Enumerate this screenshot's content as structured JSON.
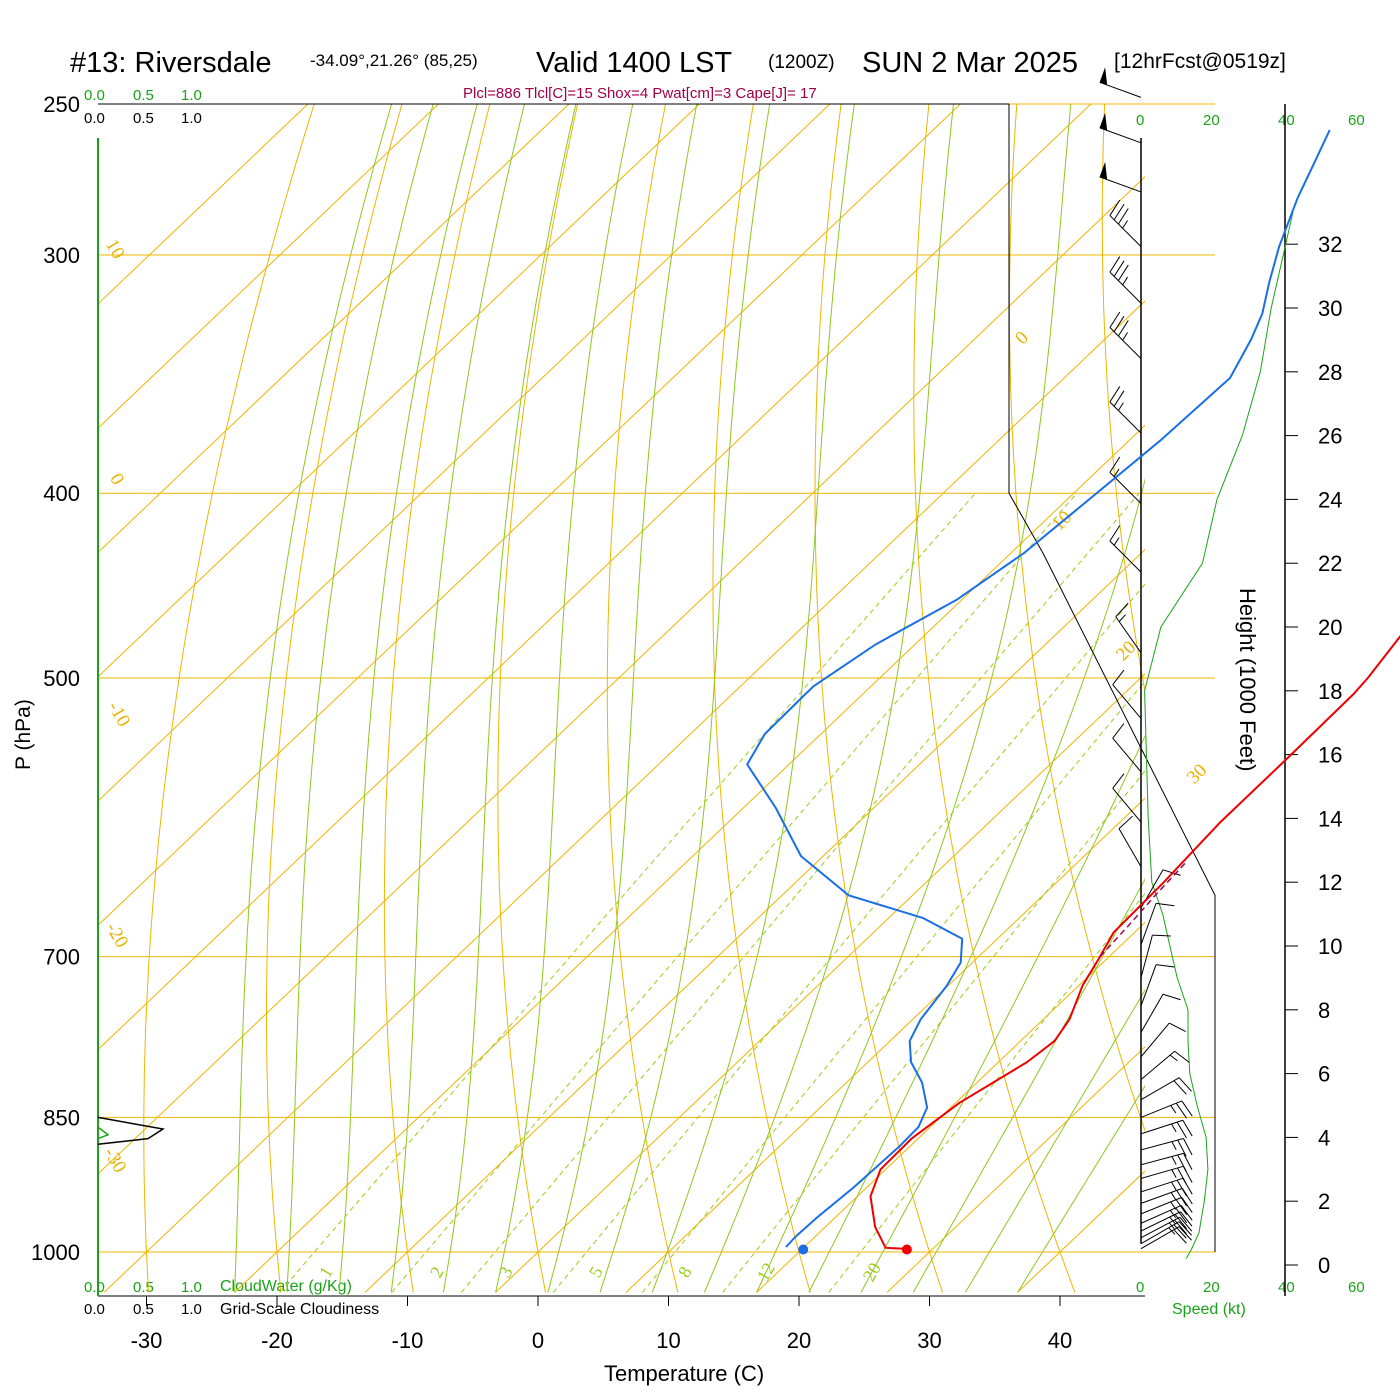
{
  "title": {
    "station": "#13: Riversdale",
    "coords": "-34.09°,21.26° (85,25)",
    "valid": "Valid 1400 LST",
    "zulu": "(1200Z)",
    "date": "SUN 2 Mar 2025",
    "forecast": "[12hrFcst@0519z]"
  },
  "indices": "Plcl=886 Tlcl[C]=15 Shox=4 Pwat[cm]=3 Cape[J]= 17",
  "colors": {
    "temperature": "#ee0000",
    "dewpoint": "#1a6ee6",
    "isotherm": "#f0b400",
    "dry_adiabat": "#f0b400",
    "moist_adiabat": "#8cc81e",
    "mixing_ratio": "#9ccc1a",
    "accent_green": "#19a319",
    "indices": "#a0004a"
  },
  "cloud": {
    "top_green_ticks": [
      "0.0",
      "0.5",
      "1.0"
    ],
    "top_black_ticks": [
      "0.0",
      "0.5",
      "1.0"
    ],
    "bottom_green_ticks": [
      "0.0",
      "0.5",
      "1.0"
    ],
    "bottom_black_ticks": [
      "0.0",
      "0.5",
      "1.0"
    ],
    "cloudwater_label": "CloudWater (g/Kg)",
    "cloudiness_label": "Grid-Scale Cloudiness",
    "cloudiness_profile": [
      [
        0.0,
        850
      ],
      [
        0.52,
        862
      ],
      [
        0.4,
        872
      ],
      [
        0.0,
        878
      ]
    ]
  },
  "speed_axis": {
    "ticks": [
      "0",
      "20",
      "40",
      "60"
    ],
    "label": "Speed (kt)"
  },
  "chart_data": {
    "type": "line",
    "diagram": "skew-T log-p",
    "xlabel": "Temperature (C)",
    "ylabel": "P (hPa)",
    "y2label": "Height (1000 Feet)",
    "x_ticks": [
      -30,
      -20,
      -10,
      0,
      10,
      20,
      30,
      40
    ],
    "x_tick_labels": [
      "-30",
      "-20",
      "-10",
      "0",
      "10",
      "20",
      "30",
      "40"
    ],
    "p_levels": [
      250,
      300,
      400,
      500,
      700,
      850,
      1000
    ],
    "p_level_labels": [
      "250",
      "300",
      "400",
      "500",
      "700",
      "850",
      "1000"
    ],
    "height_ticks": [
      0,
      2,
      4,
      6,
      8,
      10,
      12,
      14,
      16,
      18,
      20,
      22,
      24,
      26,
      28,
      30,
      32
    ],
    "height_tick_labels": [
      "0",
      "2",
      "4",
      "6",
      "8",
      "10",
      "12",
      "14",
      "16",
      "18",
      "20",
      "22",
      "24",
      "26",
      "28",
      "30",
      "32"
    ],
    "plim_hpa": [
      250,
      1050
    ],
    "isotherm_labels": [
      "10",
      "0",
      "-10",
      "-20",
      "-30",
      "0",
      "10",
      "20",
      "30"
    ],
    "mixing_ratio_labels": [
      "1",
      "2",
      "3",
      "5",
      "8",
      "12",
      "20"
    ],
    "mixing_ratio_values": [
      1,
      2,
      3,
      5,
      8,
      12,
      20
    ],
    "series": [
      {
        "name": "",
        "role": "temperature",
        "points": [
          [
            27.8,
            996
          ],
          [
            26.3,
            995
          ],
          [
            23.8,
            970
          ],
          [
            21.0,
            935
          ],
          [
            19.6,
            905
          ],
          [
            19.5,
            872
          ],
          [
            20.3,
            835
          ],
          [
            22.2,
            795
          ],
          [
            22.6,
            775
          ],
          [
            22.0,
            755
          ],
          [
            20.3,
            725
          ],
          [
            19.3,
            700
          ],
          [
            18.4,
            680
          ],
          [
            18.2,
            640
          ],
          [
            17.7,
            595
          ],
          [
            17.7,
            550
          ],
          [
            17.6,
            510
          ],
          [
            17.4,
            500
          ],
          [
            16.7,
            480
          ],
          [
            15.2,
            440
          ],
          [
            13.4,
            410
          ],
          [
            10.4,
            380
          ],
          [
            7.6,
            354
          ],
          [
            4.8,
            330
          ],
          [
            2.8,
            315
          ],
          [
            0.6,
            300
          ],
          [
            -1.6,
            288
          ],
          [
            -3.6,
            275
          ],
          [
            -5.6,
            262
          ]
        ]
      },
      {
        "name": "",
        "role": "dewpoint",
        "points": [
          [
            18.6,
            994
          ],
          [
            18.5,
            982
          ],
          [
            18.6,
            960
          ],
          [
            19.0,
            925
          ],
          [
            19.2,
            880
          ],
          [
            19.1,
            860
          ],
          [
            18.2,
            840
          ],
          [
            15.8,
            815
          ],
          [
            13.3,
            795
          ],
          [
            11.5,
            775
          ],
          [
            10.6,
            755
          ],
          [
            9.9,
            725
          ],
          [
            9.1,
            705
          ],
          [
            7.3,
            685
          ],
          [
            2.6,
            668
          ],
          [
            -4.9,
            650
          ],
          [
            -11.7,
            620
          ],
          [
            -17.5,
            585
          ],
          [
            -23.2,
            555
          ],
          [
            -24.3,
            535
          ],
          [
            -24.4,
            510
          ],
          [
            -24.4,
            505
          ],
          [
            -23.0,
            480
          ],
          [
            -20.4,
            455
          ],
          [
            -19.0,
            430
          ],
          [
            -18.5,
            410
          ],
          [
            -17.6,
            375
          ],
          [
            -17.3,
            348
          ],
          [
            -18.8,
            332
          ],
          [
            -20.0,
            322
          ],
          [
            -22.0,
            310
          ],
          [
            -24.1,
            297
          ],
          [
            -26.6,
            280
          ],
          [
            -28.2,
            268
          ],
          [
            -29.6,
            258
          ]
        ]
      },
      {
        "name": "",
        "role": "parcel",
        "points": [
          [
            19.3,
            700
          ],
          [
            19.0,
            675
          ],
          [
            18.6,
            650
          ],
          [
            18.3,
            625
          ]
        ]
      }
    ],
    "surface_temperature_c": 27.5,
    "surface_dewpoint_c": 20.4,
    "height_profile_kft": [
      [
        0.2,
        12.5
      ],
      [
        0.5,
        14
      ],
      [
        1,
        16
      ],
      [
        2,
        17.5
      ],
      [
        3,
        18.5
      ],
      [
        4,
        18
      ],
      [
        5,
        15.5
      ],
      [
        6,
        13.5
      ],
      [
        7,
        13
      ],
      [
        8,
        13
      ],
      [
        9,
        10
      ],
      [
        10,
        8
      ],
      [
        11,
        6
      ],
      [
        12,
        3
      ],
      [
        14,
        2
      ],
      [
        16,
        1.5
      ],
      [
        18,
        1
      ],
      [
        20,
        5.5
      ],
      [
        22,
        17
      ],
      [
        24,
        21
      ],
      [
        26,
        28
      ],
      [
        28,
        33
      ],
      [
        30,
        36
      ],
      [
        32,
        40
      ],
      [
        33,
        42
      ]
    ],
    "wind_barbs": [
      {
        "p": 996,
        "speed_kt": 20,
        "dir_deg": 60
      },
      {
        "p": 990,
        "speed_kt": 25,
        "dir_deg": 60
      },
      {
        "p": 983,
        "speed_kt": 25,
        "dir_deg": 62
      },
      {
        "p": 975,
        "speed_kt": 25,
        "dir_deg": 64
      },
      {
        "p": 966,
        "speed_kt": 25,
        "dir_deg": 66
      },
      {
        "p": 955,
        "speed_kt": 25,
        "dir_deg": 68
      },
      {
        "p": 943,
        "speed_kt": 25,
        "dir_deg": 70
      },
      {
        "p": 930,
        "speed_kt": 25,
        "dir_deg": 72
      },
      {
        "p": 915,
        "speed_kt": 25,
        "dir_deg": 74
      },
      {
        "p": 900,
        "speed_kt": 25,
        "dir_deg": 75
      },
      {
        "p": 884,
        "speed_kt": 25,
        "dir_deg": 75
      },
      {
        "p": 867,
        "speed_kt": 25,
        "dir_deg": 72
      },
      {
        "p": 850,
        "speed_kt": 25,
        "dir_deg": 68
      },
      {
        "p": 832,
        "speed_kt": 20,
        "dir_deg": 60
      },
      {
        "p": 812,
        "speed_kt": 15,
        "dir_deg": 50
      },
      {
        "p": 790,
        "speed_kt": 10,
        "dir_deg": 40
      },
      {
        "p": 767,
        "speed_kt": 10,
        "dir_deg": 30
      },
      {
        "p": 743,
        "speed_kt": 10,
        "dir_deg": 20
      },
      {
        "p": 718,
        "speed_kt": 10,
        "dir_deg": 15
      },
      {
        "p": 690,
        "speed_kt": 10,
        "dir_deg": 20
      },
      {
        "p": 660,
        "speed_kt": 10,
        "dir_deg": 30
      },
      {
        "p": 628,
        "speed_kt": 10,
        "dir_deg": 330
      },
      {
        "p": 595,
        "speed_kt": 10,
        "dir_deg": 320
      },
      {
        "p": 560,
        "speed_kt": 10,
        "dir_deg": 320
      },
      {
        "p": 525,
        "speed_kt": 10,
        "dir_deg": 320
      },
      {
        "p": 485,
        "speed_kt": 15,
        "dir_deg": 325
      },
      {
        "p": 440,
        "speed_kt": 15,
        "dir_deg": 315
      },
      {
        "p": 405,
        "speed_kt": 15,
        "dir_deg": 315
      },
      {
        "p": 372,
        "speed_kt": 25,
        "dir_deg": 315
      },
      {
        "p": 340,
        "speed_kt": 35,
        "dir_deg": 315
      },
      {
        "p": 318,
        "speed_kt": 35,
        "dir_deg": 315
      },
      {
        "p": 297,
        "speed_kt": 35,
        "dir_deg": 315
      },
      {
        "p": 278,
        "speed_kt": 50,
        "dir_deg": 290
      },
      {
        "p": 262,
        "speed_kt": 50,
        "dir_deg": 290
      },
      {
        "p": 248,
        "speed_kt": 50,
        "dir_deg": 290
      }
    ]
  }
}
